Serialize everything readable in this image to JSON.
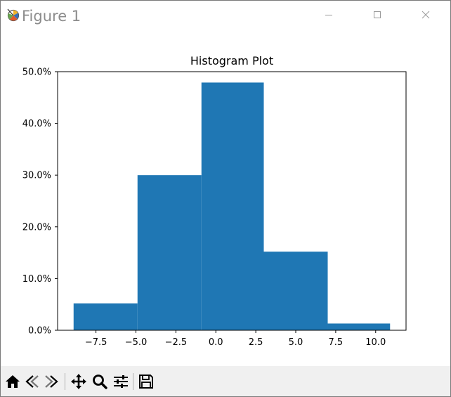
{
  "window": {
    "title": "Figure 1",
    "controls": [
      "minimize-icon",
      "maximize-icon",
      "close-icon"
    ]
  },
  "toolbar": {
    "buttons": [
      {
        "name": "home",
        "icon": "home-icon"
      },
      {
        "name": "back",
        "icon": "back-arrow-icon"
      },
      {
        "name": "forward",
        "icon": "forward-arrow-icon"
      },
      {
        "name": "pan",
        "icon": "pan-move-icon"
      },
      {
        "name": "zoom",
        "icon": "zoom-magnifier-icon"
      },
      {
        "name": "configure-subplots",
        "icon": "sliders-icon"
      },
      {
        "name": "save",
        "icon": "save-floppy-icon"
      }
    ]
  },
  "chart_data": {
    "type": "bar",
    "title": "Histogram Plot",
    "xlabel": "",
    "ylabel": "",
    "bar_color": "#1f77b4",
    "bins": [
      {
        "x0": -8.9,
        "x1": -4.9,
        "value": 0.052
      },
      {
        "x0": -4.9,
        "x1": -0.9,
        "value": 0.3
      },
      {
        "x0": -0.9,
        "x1": 3.0,
        "value": 0.479
      },
      {
        "x0": 3.0,
        "x1": 7.0,
        "value": 0.152
      },
      {
        "x0": 7.0,
        "x1": 10.9,
        "value": 0.013
      }
    ],
    "xlim": [
      -9.9,
      11.9
    ],
    "ylim": [
      0,
      0.5
    ],
    "xticks": [
      {
        "value": -7.5,
        "label": "−7.5"
      },
      {
        "value": -5.0,
        "label": "−5.0"
      },
      {
        "value": -2.5,
        "label": "−2.5"
      },
      {
        "value": 0.0,
        "label": "0.0"
      },
      {
        "value": 2.5,
        "label": "2.5"
      },
      {
        "value": 5.0,
        "label": "5.0"
      },
      {
        "value": 7.5,
        "label": "7.5"
      },
      {
        "value": 10.0,
        "label": "10.0"
      }
    ],
    "yticks": [
      {
        "value": 0.0,
        "label": "0.0%"
      },
      {
        "value": 0.1,
        "label": "10.0%"
      },
      {
        "value": 0.2,
        "label": "20.0%"
      },
      {
        "value": 0.3,
        "label": "30.0%"
      },
      {
        "value": 0.4,
        "label": "40.0%"
      },
      {
        "value": 0.5,
        "label": "50.0%"
      }
    ],
    "grid": false,
    "legend": "none"
  }
}
